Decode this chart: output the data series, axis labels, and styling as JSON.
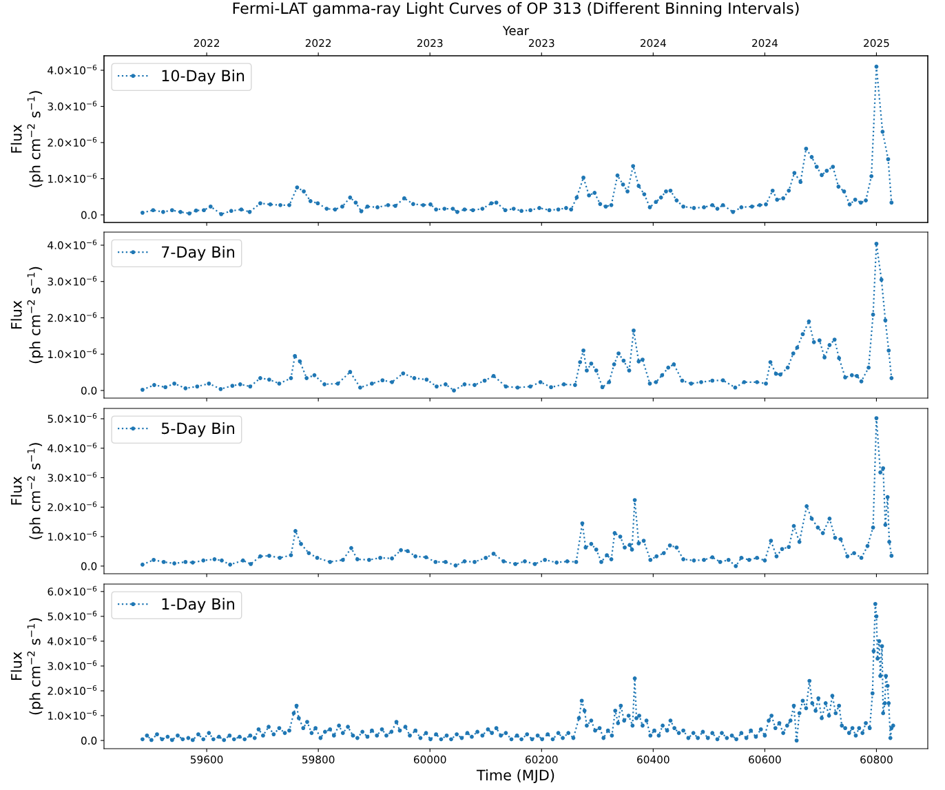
{
  "chart_data": [
    {
      "type": "line",
      "title": "Fermi-LAT gamma-ray Light Curves of OP 313 (Different Binning Intervals)",
      "ylabel": "Flux\n(ph cm$^{−2}$ s$^{−1}$)",
      "x2label": "Year",
      "xlim": [
        59416,
        60892
      ],
      "x2lim": [
        "2021-07-21",
        "2025-08-05"
      ],
      "x2ticks": [
        {
          "value": "2022-01-21",
          "label": "2022"
        },
        {
          "value": "2022-08-09",
          "label": "2022"
        },
        {
          "value": "2023-02-25",
          "label": "2023"
        },
        {
          "value": "2023-09-13",
          "label": "2023"
        },
        {
          "value": "2024-03-31",
          "label": "2024"
        },
        {
          "value": "2024-10-17",
          "label": "2024"
        },
        {
          "value": "2025-05-05",
          "label": "2025"
        }
      ],
      "xticks": [
        {
          "value": 59600,
          "label": null
        },
        {
          "value": 59800,
          "label": null
        },
        {
          "value": 60000,
          "label": null
        },
        {
          "value": 60200,
          "label": null
        },
        {
          "value": 60400,
          "label": null
        },
        {
          "value": 60600,
          "label": null
        },
        {
          "value": 60800,
          "label": null
        }
      ],
      "ylim": [
        -2.1e-07,
        4.4e-06
      ],
      "yticks": [
        {
          "value": 0,
          "label": "0.0"
        },
        {
          "value": 1e-06,
          "label": "1.0×10$^{−6}$"
        },
        {
          "value": 2e-06,
          "label": "2.0×10$^{−6}$"
        },
        {
          "value": 3e-06,
          "label": "3.0×10$^{−6}$"
        },
        {
          "value": 4e-06,
          "label": "4.0×10$^{−6}$"
        }
      ],
      "tick_labels": "y",
      "legend": "top left",
      "marker": "circle",
      "line_style": "dotted",
      "grid": false,
      "series": [
        {
          "name": "10-Day Bin",
          "color": "#1f77b4",
          "x": [
            59485,
            59504,
            59522,
            59538,
            59553,
            59569,
            59581,
            59595,
            59607,
            59626,
            59644,
            59662,
            59677,
            59696,
            59714,
            59732,
            59748,
            59762,
            59774,
            59786,
            59799,
            59815,
            59830,
            59843,
            59857,
            59867,
            59877,
            59888,
            59906,
            59925,
            59938,
            59954,
            59970,
            59988,
            60001,
            60011,
            60026,
            60041,
            60049,
            60062,
            60077,
            60094,
            60110,
            60119,
            60135,
            60150,
            60164,
            60180,
            60196,
            60214,
            60230,
            60244,
            60253,
            60263,
            60275,
            60285,
            60295,
            60305,
            60315,
            60325,
            60336,
            60346,
            60354,
            60364,
            60374,
            60384,
            60394,
            60405,
            60414,
            60423,
            60431,
            60442,
            60454,
            60473,
            60491,
            60506,
            60515,
            60525,
            60543,
            60558,
            60577,
            60591,
            60602,
            60614,
            60622,
            60633,
            60643,
            60653,
            60664,
            60674,
            60684,
            60693,
            60702,
            60711,
            60722,
            60732,
            60742,
            60752,
            60762,
            60772,
            60781,
            60791,
            60800,
            60811,
            60821,
            60827
          ],
          "values": [
            6e-08,
            1.3e-07,
            8e-08,
            1.3e-07,
            8e-08,
            4e-08,
            1.2e-07,
            1.3e-07,
            2.3e-07,
            2e-08,
            1.1e-07,
            1.5e-07,
            8e-08,
            3.2e-07,
            2.9e-07,
            2.7e-07,
            2.7e-07,
            7.6e-07,
            6.5e-07,
            3.8e-07,
            3.2e-07,
            1.7e-07,
            1.5e-07,
            2.3e-07,
            4.8e-07,
            3.4e-07,
            1e-07,
            2.3e-07,
            2.1e-07,
            2.7e-07,
            2.5e-07,
            4.6e-07,
            3e-07,
            2.7e-07,
            2.9e-07,
            1.5e-07,
            1.7e-07,
            1.7e-07,
            8e-08,
            1.5e-07,
            1.3e-07,
            1.7e-07,
            3.2e-07,
            3.4e-07,
            1.3e-07,
            1.7e-07,
            1.1e-07,
            1.3e-07,
            1.9e-07,
            1.3e-07,
            1.5e-07,
            1.9e-07,
            1.5e-07,
            4.8e-07,
            1.03e-06,
            5.4e-07,
            6.1e-07,
            3e-07,
            2.3e-07,
            2.7e-07,
            1.09e-06,
            8.4e-07,
            6.5e-07,
            1.35e-06,
            8e-07,
            5.7e-07,
            2.1e-07,
            3.6e-07,
            4.8e-07,
            6.5e-07,
            6.7e-07,
            4e-07,
            2.3e-07,
            1.9e-07,
            2.1e-07,
            2.7e-07,
            1.7e-07,
            2.7e-07,
            8e-08,
            2.1e-07,
            2.3e-07,
            2.7e-07,
            2.9e-07,
            6.7e-07,
            4.2e-07,
            4.6e-07,
            6.7e-07,
            1.16e-06,
            9.1e-07,
            1.83e-06,
            1.6e-06,
            1.33e-06,
            1.1e-06,
            1.22e-06,
            1.33e-06,
            7.8e-07,
            6.5e-07,
            2.9e-07,
            4.2e-07,
            3.4e-07,
            4e-07,
            1.07e-06,
            4.1e-06,
            2.3e-06,
            1.54e-06,
            3.4e-07
          ]
        }
      ]
    },
    {
      "type": "line",
      "ylabel": "Flux\n(ph cm$^{−2}$ s$^{−1}$)",
      "xlim": [
        59416,
        60892
      ],
      "xticks": [
        {
          "value": 59600,
          "label": null
        },
        {
          "value": 59800,
          "label": null
        },
        {
          "value": 60000,
          "label": null
        },
        {
          "value": 60200,
          "label": null
        },
        {
          "value": 60400,
          "label": null
        },
        {
          "value": 60600,
          "label": null
        },
        {
          "value": 60800,
          "label": null
        }
      ],
      "ylim": [
        -2.1e-07,
        4.36e-06
      ],
      "yticks": [
        {
          "value": 0,
          "label": "0.0"
        },
        {
          "value": 1e-06,
          "label": "1.0×10$^{−6}$"
        },
        {
          "value": 2e-06,
          "label": "2.0×10$^{−6}$"
        },
        {
          "value": 3e-06,
          "label": "3.0×10$^{−6}$"
        },
        {
          "value": 4e-06,
          "label": "4.0×10$^{−6}$"
        }
      ],
      "tick_labels": "y",
      "legend": "top left",
      "marker": "circle",
      "line_style": "dotted",
      "grid": false,
      "series": [
        {
          "name": "7-Day Bin",
          "color": "#1f77b4",
          "x": [
            59485,
            59506,
            59526,
            59542,
            59562,
            59583,
            59604,
            59625,
            59646,
            59660,
            59678,
            59696,
            59712,
            59730,
            59751,
            59758,
            59767,
            59779,
            59793,
            59811,
            59835,
            59857,
            59875,
            59896,
            59915,
            59932,
            59952,
            59972,
            59994,
            60012,
            60028,
            60043,
            60062,
            60080,
            60098,
            60114,
            60136,
            60157,
            60180,
            60198,
            60217,
            60240,
            60260,
            60269,
            60275,
            60281,
            60289,
            60298,
            60309,
            60321,
            60330,
            60338,
            60347,
            60357,
            60365,
            60374,
            60381,
            60394,
            60405,
            60416,
            60427,
            60437,
            60452,
            60468,
            60486,
            60506,
            60525,
            60547,
            60563,
            60586,
            60602,
            60610,
            60620,
            60628,
            60641,
            60651,
            60658,
            60668,
            60679,
            60688,
            60698,
            60707,
            60716,
            60725,
            60733,
            60744,
            60756,
            60765,
            60773,
            60786,
            60794,
            60800,
            60809,
            60816,
            60822,
            60827
          ],
          "values": [
            2e-08,
            1.5e-07,
            9e-08,
            1.9e-07,
            6e-08,
            1.1e-07,
            1.9e-07,
            4e-08,
            1.3e-07,
            1.7e-07,
            1.1e-07,
            3.4e-07,
            3e-07,
            1.9e-07,
            3.4e-07,
            9.5e-07,
            8e-07,
            3.4e-07,
            4.2e-07,
            1.7e-07,
            1.9e-07,
            5.1e-07,
            8e-08,
            1.9e-07,
            2.8e-07,
            2.3e-07,
            4.7e-07,
            3.4e-07,
            3e-07,
            1.1e-07,
            1.7e-07,
            0.0,
            1.7e-07,
            1.5e-07,
            2.7e-07,
            4e-07,
            1.1e-07,
            8e-08,
            1.1e-07,
            2.3e-07,
            9e-08,
            1.7e-07,
            1.5e-07,
            7.8e-07,
            1.1e-06,
            5.5e-07,
            7.4e-07,
            5.5e-07,
            9e-08,
            2.3e-07,
            7.2e-07,
            1.02e-06,
            8.2e-07,
            5.5e-07,
            1.65e-06,
            8e-07,
            8.5e-07,
            1.9e-07,
            2.3e-07,
            4.2e-07,
            6.3e-07,
            7.2e-07,
            2.7e-07,
            1.9e-07,
            2.3e-07,
            2.7e-07,
            2.8e-07,
            8e-08,
            2.3e-07,
            2.3e-07,
            1.9e-07,
            7.8e-07,
            4.6e-07,
            4.4e-07,
            6.3e-07,
            1.02e-06,
            1.18e-06,
            1.55e-06,
            1.9e-06,
            1.33e-06,
            1.38e-06,
            9.1e-07,
            1.25e-06,
            1.4e-06,
            8.9e-07,
            3.6e-07,
            4.2e-07,
            4e-07,
            2.5e-07,
            6.3e-07,
            2.09e-06,
            4.04e-06,
            3.05e-06,
            1.93e-06,
            1.1e-06,
            3.4e-07
          ]
        }
      ]
    },
    {
      "type": "line",
      "ylabel": "Flux\n(ph cm$^{−2}$ s$^{−1}$)",
      "xlim": [
        59416,
        60892
      ],
      "xticks": [
        {
          "value": 59600,
          "label": null
        },
        {
          "value": 59800,
          "label": null
        },
        {
          "value": 60000,
          "label": null
        },
        {
          "value": 60200,
          "label": null
        },
        {
          "value": 60400,
          "label": null
        },
        {
          "value": 60600,
          "label": null
        },
        {
          "value": 60800,
          "label": null
        }
      ],
      "ylim": [
        -2.6e-07,
        5.35e-06
      ],
      "yticks": [
        {
          "value": 0,
          "label": "0.0"
        },
        {
          "value": 1e-06,
          "label": "1.0×10$^{−6}$"
        },
        {
          "value": 2e-06,
          "label": "2.0×10$^{−6}$"
        },
        {
          "value": 3e-06,
          "label": "3.0×10$^{−6}$"
        },
        {
          "value": 4e-06,
          "label": "4.0×10$^{−6}$"
        },
        {
          "value": 5e-06,
          "label": "5.0×10$^{−6}$"
        }
      ],
      "tick_labels": "y",
      "legend": "top left",
      "marker": "circle",
      "line_style": "dotted",
      "grid": false,
      "series": [
        {
          "name": "5-Day Bin",
          "color": "#1f77b4",
          "x": [
            59485,
            59505,
            59523,
            59542,
            59562,
            59575,
            59594,
            59614,
            59627,
            59642,
            59665,
            59679,
            59696,
            59712,
            59731,
            59751,
            59759,
            59769,
            59783,
            59798,
            59821,
            59844,
            59859,
            59870,
            59891,
            59911,
            59932,
            59948,
            59960,
            59974,
            59993,
            60010,
            60028,
            60046,
            60062,
            60080,
            60100,
            60114,
            60132,
            60153,
            60170,
            60188,
            60206,
            60227,
            60246,
            60262,
            60273,
            60279,
            60289,
            60298,
            60307,
            60317,
            60325,
            60331,
            60341,
            60349,
            60358,
            60362,
            60367,
            60374,
            60383,
            60395,
            60406,
            60419,
            60430,
            60442,
            60454,
            60473,
            60491,
            60506,
            60520,
            60535,
            60548,
            60558,
            60572,
            60586,
            60600,
            60611,
            60621,
            60631,
            60643,
            60652,
            60662,
            60675,
            60684,
            60695,
            60704,
            60716,
            60726,
            60736,
            60748,
            60760,
            60773,
            60784,
            60794,
            60800,
            60807,
            60812,
            60816,
            60820,
            60823,
            60827
          ],
          "values": [
            5e-08,
            2.1e-07,
            1.4e-07,
            9e-08,
            1.4e-07,
            1.2e-07,
            1.9e-07,
            2.3e-07,
            1.9e-07,
            5e-08,
            1.9e-07,
            7e-08,
            3.3e-07,
            3.5e-07,
            2.8e-07,
            3.7e-07,
            1.19e-06,
            7.5e-07,
            4.4e-07,
            2.8e-07,
            1.4e-07,
            2.1e-07,
            6.1e-07,
            2.3e-07,
            2.1e-07,
            2.8e-07,
            2.6e-07,
            5.4e-07,
            5.1e-07,
            3.3e-07,
            3e-07,
            1.4e-07,
            1.4e-07,
            2e-08,
            1.6e-07,
            1.4e-07,
            2.8e-07,
            4.2e-07,
            1.6e-07,
            7e-08,
            1.6e-07,
            7e-08,
            2.1e-07,
            1.2e-07,
            1.6e-07,
            1.4e-07,
            1.45e-06,
            6.3e-07,
            7.5e-07,
            5.6e-07,
            1.4e-07,
            3.7e-07,
            2.3e-07,
            1.12e-06,
            1e-06,
            6.3e-07,
            7.2e-07,
            5.6e-07,
            2.24e-06,
            7.7e-07,
            8.6e-07,
            2.1e-07,
            3.3e-07,
            4.4e-07,
            7e-07,
            6.3e-07,
            2.3e-07,
            1.9e-07,
            2.1e-07,
            3e-07,
            1.4e-07,
            2.1e-07,
            0.0,
            2.8e-07,
            2.1e-07,
            2.8e-07,
            1.9e-07,
            8.6e-07,
            3.3e-07,
            5.8e-07,
            6.5e-07,
            1.36e-06,
            8.2e-07,
            2.03e-06,
            1.61e-06,
            1.31e-06,
            1.12e-06,
            1.61e-06,
            9.6e-07,
            9.1e-07,
            3.3e-07,
            4.4e-07,
            2.8e-07,
            6.8e-07,
            1.31e-06,
            5.02e-06,
            3.18e-06,
            3.32e-06,
            1.4e-06,
            2.34e-06,
            8.2e-07,
            3.5e-07
          ]
        }
      ]
    },
    {
      "type": "line",
      "ylabel": "Flux\n(ph cm$^{−2}$ s$^{−1}$)",
      "xlabel": "Time (MJD)",
      "xlim": [
        59416,
        60892
      ],
      "xticks": [
        59600,
        59800,
        60000,
        60200,
        60400,
        60600,
        60800
      ],
      "ylim": [
        -3.3e-07,
        6.3e-06
      ],
      "yticks": [
        {
          "value": 0,
          "label": "0.0"
        },
        {
          "value": 1e-06,
          "label": "1.0×10$^{−6}$"
        },
        {
          "value": 2e-06,
          "label": "2.0×10$^{−6}$"
        },
        {
          "value": 3e-06,
          "label": "3.0×10$^{−6}$"
        },
        {
          "value": 4e-06,
          "label": "4.0×10$^{−6}$"
        },
        {
          "value": 5e-06,
          "label": "5.0×10$^{−6}$"
        },
        {
          "value": 6e-06,
          "label": "6.0×10$^{−6}$"
        }
      ],
      "legend": "top left",
      "marker": "circle",
      "line_style": "dotted",
      "grid": false,
      "series": [
        {
          "name": "1-Day Bin",
          "color": "#1f77b4",
          "x": [
            59485,
            59493,
            59501,
            59511,
            59520,
            59530,
            59538,
            59548,
            59557,
            59567,
            59575,
            59585,
            59594,
            59604,
            59612,
            59622,
            59631,
            59641,
            59649,
            59659,
            59668,
            59678,
            59686,
            59693,
            59701,
            59711,
            59720,
            59730,
            59740,
            59748,
            59756,
            59761,
            59765,
            59773,
            59780,
            59788,
            59795,
            59804,
            59812,
            59821,
            59828,
            59837,
            59844,
            59853,
            59862,
            59870,
            59879,
            59888,
            59896,
            59905,
            59914,
            59922,
            59931,
            59940,
            59946,
            59956,
            59964,
            59974,
            59983,
            59993,
            60001,
            60011,
            60020,
            60030,
            60038,
            60048,
            60057,
            60067,
            60075,
            60085,
            60094,
            60104,
            60111,
            60119,
            60127,
            60136,
            60146,
            60156,
            60164,
            60174,
            60183,
            60193,
            60201,
            60211,
            60220,
            60230,
            60238,
            60248,
            60257,
            60267,
            60272,
            60277,
            60281,
            60289,
            60296,
            60304,
            60311,
            60319,
            60326,
            60332,
            60337,
            60342,
            60348,
            60356,
            60363,
            60367,
            60370,
            60375,
            60381,
            60388,
            60395,
            60402,
            60410,
            60417,
            60425,
            60431,
            60438,
            60446,
            60454,
            60463,
            60472,
            60480,
            60489,
            60498,
            60506,
            60515,
            60523,
            60532,
            60541,
            60549,
            60558,
            60567,
            60575,
            60584,
            60593,
            60600,
            60607,
            60612,
            60619,
            60626,
            60633,
            60640,
            60646,
            60652,
            60657,
            60662,
            60668,
            60674,
            60680,
            60685,
            60691,
            60696,
            60702,
            60709,
            60715,
            60721,
            60727,
            60733,
            60738,
            60744,
            60751,
            60757,
            60763,
            60769,
            60775,
            60781,
            60788,
            60793,
            60795,
            60798,
            60800,
            60802,
            60805,
            60807,
            60810,
            60812,
            60815,
            60817,
            60820,
            60822,
            60825,
            60827,
            60830
          ],
          "values": [
            5e-08,
            2e-07,
            2e-08,
            2.5e-07,
            5e-08,
            1.5e-07,
            2e-08,
            2e-07,
            5e-08,
            1e-07,
            2e-08,
            2.5e-07,
            5e-08,
            3e-07,
            5e-08,
            1.5e-07,
            2e-08,
            2e-07,
            5e-08,
            1.5e-07,
            5e-08,
            2e-07,
            1e-07,
            4.5e-07,
            2e-07,
            5.5e-07,
            2.5e-07,
            5e-07,
            3e-07,
            4e-07,
            1.1e-06,
            1.4e-06,
            9e-07,
            5e-07,
            7.5e-07,
            3e-07,
            5e-07,
            1e-07,
            3.5e-07,
            4.5e-07,
            2e-07,
            6e-07,
            3e-07,
            5.5e-07,
            2e-07,
            1e-07,
            3.5e-07,
            1.5e-07,
            4e-07,
            2e-07,
            4.5e-07,
            2e-07,
            3.5e-07,
            7.5e-07,
            4e-07,
            5.5e-07,
            2e-07,
            4e-07,
            1e-07,
            3e-07,
            5e-08,
            2.5e-07,
            5e-08,
            2e-07,
            5e-08,
            2.5e-07,
            1e-07,
            3e-07,
            1.5e-07,
            3.5e-07,
            2e-07,
            4.5e-07,
            3e-07,
            5e-07,
            2e-07,
            3e-07,
            5e-08,
            2e-07,
            5e-08,
            2.5e-07,
            5e-08,
            2e-07,
            5e-08,
            2.5e-07,
            5e-08,
            3e-07,
            1e-07,
            3e-07,
            1e-07,
            9e-07,
            1.6e-06,
            1.2e-06,
            6e-07,
            8e-07,
            4e-07,
            5e-07,
            1e-07,
            4e-07,
            2e-07,
            1.2e-06,
            7e-07,
            1.4e-06,
            8e-07,
            1e-06,
            6e-07,
            2.5e-06,
            9e-07,
            1e-06,
            6e-07,
            8e-07,
            2e-07,
            4e-07,
            2e-07,
            6e-07,
            4e-07,
            8e-07,
            5e-07,
            3e-07,
            4e-07,
            1e-07,
            3e-07,
            1e-07,
            3.5e-07,
            1e-07,
            3e-07,
            5e-08,
            3e-07,
            1e-07,
            2e-07,
            5e-08,
            3e-07,
            1e-07,
            4e-07,
            1.5e-07,
            4.5e-07,
            2e-07,
            8e-07,
            1e-06,
            5e-07,
            7e-07,
            3e-07,
            6e-07,
            8e-07,
            1.4e-06,
            0.0,
            1.1e-06,
            1.6e-06,
            1.3e-06,
            2.4e-06,
            1.5e-06,
            1.2e-06,
            1.7e-06,
            9e-07,
            1.5e-06,
            1e-06,
            1.8e-06,
            1.1e-06,
            1.4e-06,
            6e-07,
            5e-07,
            3e-07,
            5e-07,
            2e-07,
            5e-07,
            3e-07,
            7e-07,
            5e-07,
            1.9e-06,
            3.6e-06,
            5.5e-06,
            5e-06,
            3.3e-06,
            4e-06,
            2.6e-06,
            3.8e-06,
            1.1e-06,
            1.5e-06,
            2.6e-06,
            2.2e-06,
            1.5e-06,
            1e-07,
            5e-07,
            6e-07
          ]
        }
      ]
    }
  ]
}
